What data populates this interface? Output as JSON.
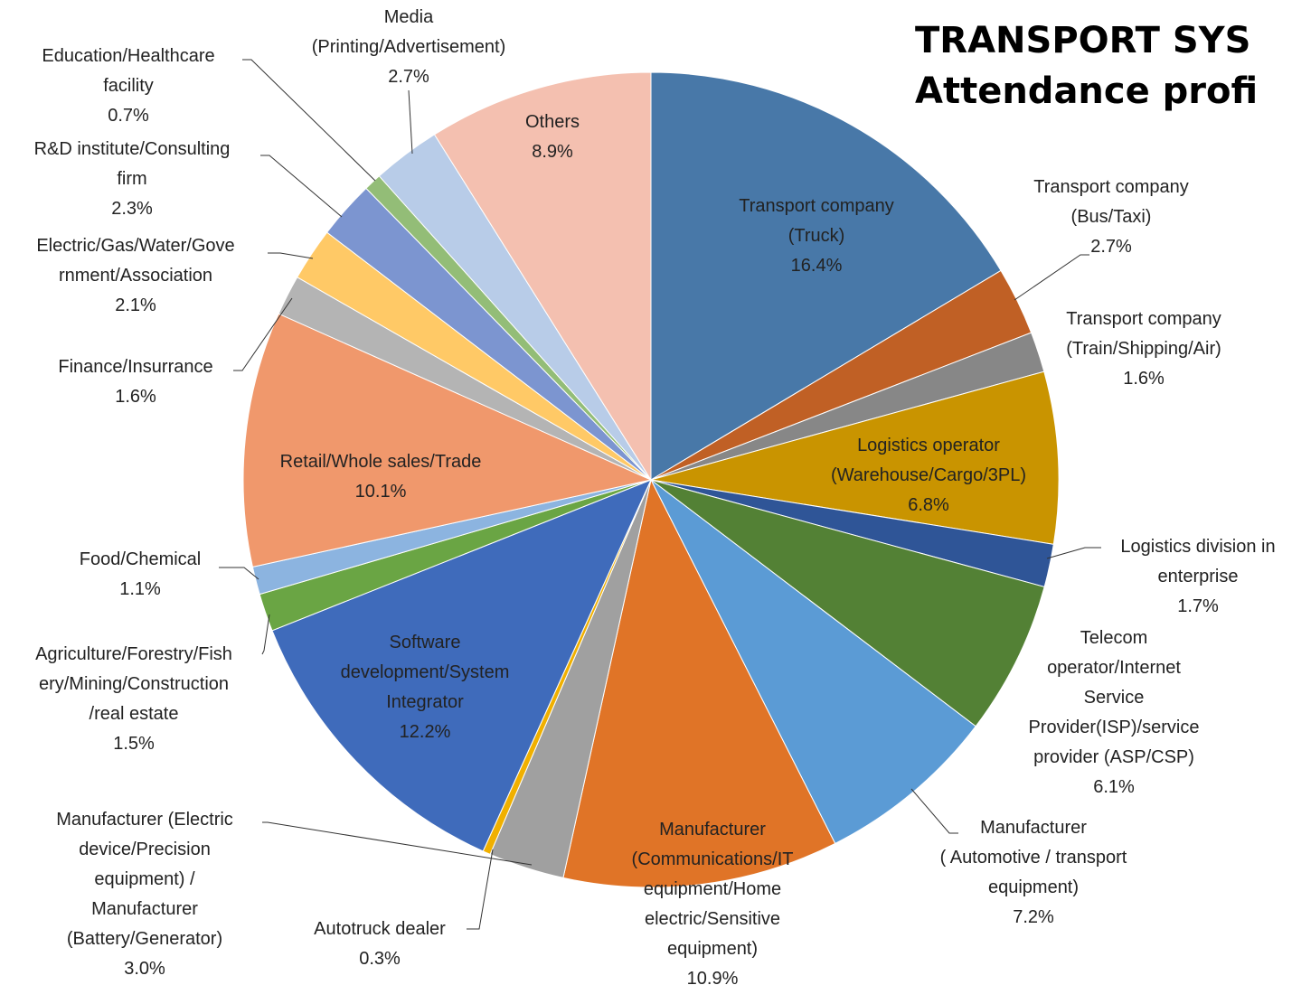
{
  "chart_data": {
    "type": "pie",
    "title": [
      "TRANSPORT SYS",
      "Attendance profi"
    ],
    "categories": [
      [
        "Transport company",
        "(Truck)"
      ],
      [
        "Transport company",
        "(Bus/Taxi)"
      ],
      [
        "Transport company",
        "(Train/Shipping/Air)"
      ],
      [
        "Logistics operator",
        "(Warehouse/Cargo/3PL)"
      ],
      [
        "Logistics division in",
        "enterprise"
      ],
      [
        "Telecom",
        "operator/Internet",
        "Service",
        "Provider(ISP)/service",
        "provider (ASP/CSP)"
      ],
      [
        "Manufacturer",
        "( Automotive / transport",
        "equipment)"
      ],
      [
        "Manufacturer",
        "(Communications/IT",
        "equipment/Home",
        "electric/Sensitive",
        "equipment)"
      ],
      [
        "Manufacturer (Electric",
        "device/Precision",
        "equipment) /",
        "Manufacturer",
        "(Battery/Generator)"
      ],
      [
        "Autotruck dealer"
      ],
      [
        "Software",
        "development/System",
        "Integrator"
      ],
      [
        "Agriculture/Forestry/Fish",
        "ery/Mining/Construction",
        "/real estate"
      ],
      [
        "Food/Chemical"
      ],
      [
        "Retail/Whole sales/Trade"
      ],
      [
        "Finance/Insurrance"
      ],
      [
        "Electric/Gas/Water/Gove",
        "rnment/Association"
      ],
      [
        "R&D institute/Consulting",
        "firm"
      ],
      [
        "Education/Healthcare",
        "facility"
      ],
      [
        "Media",
        "(Printing/Advertisement)"
      ],
      [
        "Others"
      ]
    ],
    "values": [
      16.4,
      2.7,
      1.6,
      6.8,
      1.7,
      6.1,
      7.2,
      10.9,
      3.0,
      0.3,
      12.2,
      1.5,
      1.1,
      10.1,
      1.6,
      2.1,
      2.3,
      0.7,
      2.7,
      8.9
    ],
    "value_labels": [
      "16.4%",
      "2.7%",
      "1.6%",
      "6.8%",
      "1.7%",
      "6.1%",
      "7.2%",
      "10.9%",
      "3.0%",
      "0.3%",
      "12.2%",
      "1.5%",
      "1.1%",
      "10.1%",
      "1.6%",
      "2.1%",
      "2.3%",
      "0.7%",
      "2.7%",
      "8.9%"
    ],
    "colors": [
      "#4878a8",
      "#c06025",
      "#878787",
      "#c99400",
      "#2f5597",
      "#538135",
      "#5b9bd5",
      "#e07427",
      "#a0a0a0",
      "#f0b000",
      "#3f6bbb",
      "#6aa544",
      "#8cb4e0",
      "#f0986c",
      "#b4b4b4",
      "#ffc966",
      "#7c95d0",
      "#93bd77",
      "#b8cce8",
      "#f4c0b0"
    ]
  }
}
